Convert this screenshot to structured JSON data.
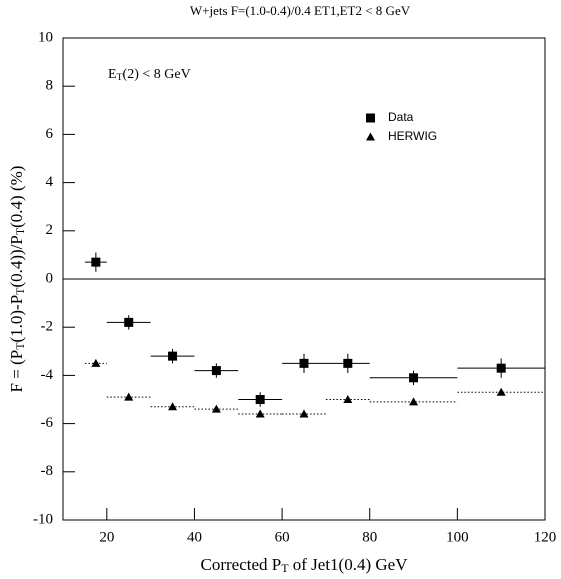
{
  "chart_data": {
    "type": "scatter",
    "title": "W+jets  F=(1.0-0.4)/0.4 ET1,ET2 < 8 GeV",
    "x_label": [
      "Corrected P",
      "T",
      " of Jet1(0.4) GeV"
    ],
    "y_label": [
      "F = (P",
      "T",
      "(1.0)-P",
      "T",
      "(0.4))/P",
      "T",
      "(0.4) (%)"
    ],
    "annotation": [
      "E",
      "T",
      "(2) < 8 GeV"
    ],
    "xlim": [
      10,
      120
    ],
    "ylim": [
      -10,
      10
    ],
    "xticks": [
      20,
      40,
      60,
      80,
      100,
      120
    ],
    "yticks": [
      -10,
      -8,
      -6,
      -4,
      -2,
      0,
      2,
      4,
      6,
      8,
      10
    ],
    "series": [
      {
        "name": "Data",
        "marker": "square",
        "color": "#000000",
        "x": [
          17.5,
          25,
          35,
          45,
          55,
          65,
          75,
          90,
          110
        ],
        "xerr": [
          2.5,
          5,
          5,
          5,
          5,
          5,
          5,
          10,
          10
        ],
        "values": [
          0.7,
          -1.8,
          -3.2,
          -3.8,
          -5.0,
          -3.5,
          -3.5,
          -4.1,
          -3.7
        ],
        "errors": [
          0.4,
          0.3,
          0.3,
          0.3,
          0.3,
          0.4,
          0.4,
          0.3,
          0.4
        ]
      },
      {
        "name": "HERWIG",
        "marker": "triangle",
        "color": "#000000",
        "x": [
          17.5,
          25,
          35,
          45,
          55,
          65,
          75,
          90,
          110
        ],
        "xerr": [
          2.5,
          5,
          5,
          5,
          5,
          5,
          5,
          10,
          10
        ],
        "values": [
          -3.5,
          -4.9,
          -5.3,
          -5.4,
          -5.6,
          -5.6,
          -5.0,
          -5.1,
          -4.7
        ]
      }
    ]
  }
}
